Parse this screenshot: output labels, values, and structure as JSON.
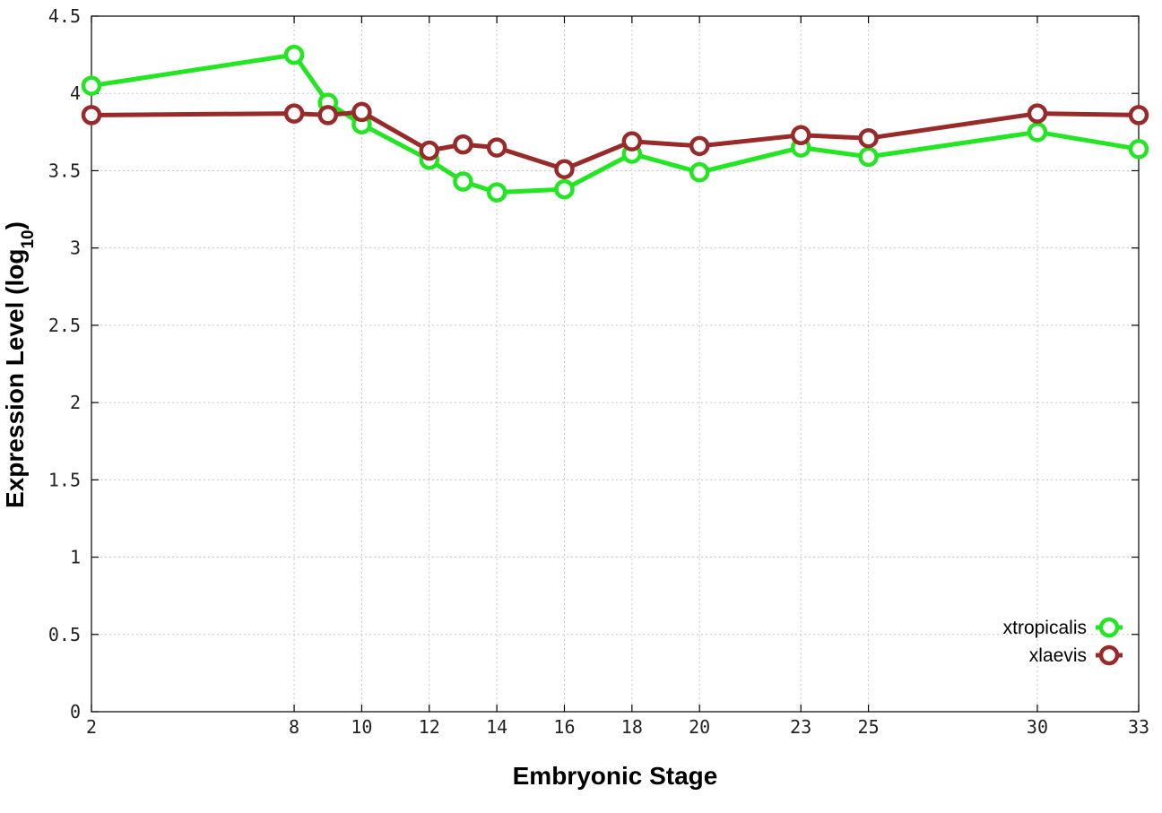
{
  "chart_data": {
    "type": "line",
    "xlabel": "Embryonic Stage",
    "ylabel_main": "Expression Level (log",
    "ylabel_sub": "10",
    "ylabel_end": ")",
    "xlim": [
      2,
      33
    ],
    "ylim": [
      0,
      4.5
    ],
    "x_ticks": [
      2,
      8,
      10,
      12,
      14,
      16,
      18,
      20,
      23,
      25,
      30,
      33
    ],
    "x_tick_labels": [
      "2",
      "8",
      "10",
      "12",
      "14",
      "16",
      "18",
      "20",
      "23",
      "25",
      "30",
      "33"
    ],
    "y_ticks": [
      0,
      0.5,
      1,
      1.5,
      2,
      2.5,
      3,
      3.5,
      4,
      4.5
    ],
    "y_tick_labels": [
      "0",
      "0.5",
      "1",
      "1.5",
      "2",
      "2.5",
      "3",
      "3.5",
      "4",
      "4.5"
    ],
    "grid": true,
    "legend_position": "bottom-right",
    "series": [
      {
        "name": "xtropicalis",
        "color": "#22e622",
        "x": [
          2,
          8,
          9,
          10,
          12,
          13,
          14,
          16,
          18,
          20,
          23,
          25,
          30,
          33
        ],
        "y": [
          4.05,
          4.25,
          3.94,
          3.8,
          3.57,
          3.43,
          3.36,
          3.38,
          3.61,
          3.49,
          3.65,
          3.59,
          3.75,
          3.64
        ]
      },
      {
        "name": "xlaevis",
        "color": "#992a2a",
        "x": [
          2,
          8,
          9,
          10,
          12,
          13,
          14,
          16,
          18,
          20,
          23,
          25,
          30,
          33
        ],
        "y": [
          3.86,
          3.87,
          3.86,
          3.88,
          3.63,
          3.67,
          3.65,
          3.51,
          3.69,
          3.66,
          3.73,
          3.71,
          3.87,
          3.86
        ]
      }
    ]
  }
}
